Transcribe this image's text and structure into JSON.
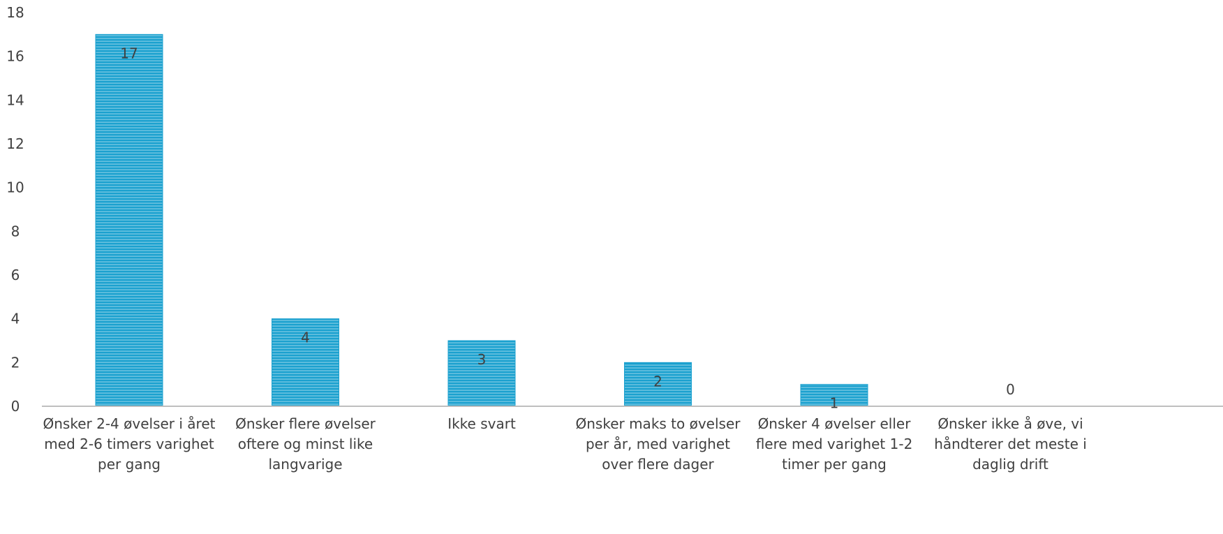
{
  "chart_data": {
    "type": "bar",
    "categories": [
      [
        "Ønsker 2-4 øvelser i året",
        "med 2-6 timers varighet",
        "per gang"
      ],
      [
        "Ønsker flere øvelser",
        "oftere og minst like",
        "langvarige"
      ],
      [
        "Ikke svart"
      ],
      [
        "Ønsker maks to øvelser",
        "per år, med varighet",
        "over flere dager"
      ],
      [
        "Ønsker 4 øvelser eller",
        "flere med varighet 1-2",
        "timer per gang"
      ],
      [
        "Ønsker ikke å øve, vi",
        "håndterer det meste i",
        "daglig drift"
      ]
    ],
    "values": [
      17,
      4,
      3,
      2,
      1,
      0
    ],
    "data_labels": [
      "17",
      "4",
      "3",
      "2",
      "1",
      "0"
    ],
    "y_ticks": [
      "0",
      "2",
      "4",
      "6",
      "8",
      "10",
      "12",
      "14",
      "16",
      "18"
    ],
    "ylim": [
      0,
      18
    ],
    "title": "",
    "xlabel": "",
    "ylabel": "",
    "grid": false,
    "legend": "none",
    "colors": {
      "bar": "#1ba1cf",
      "bar_stripe": "#ffffff",
      "axis": "#bfbfbf",
      "text": "#404040"
    }
  }
}
